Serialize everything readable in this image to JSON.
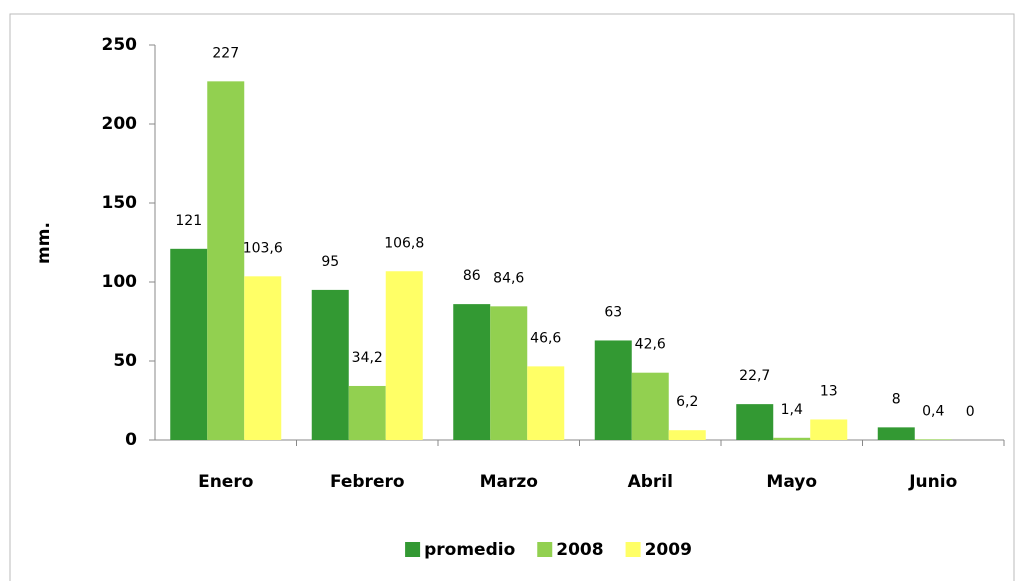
{
  "chart_data": {
    "type": "bar",
    "y_label": "mm.",
    "categories": [
      "Enero",
      "Febrero",
      "Marzo",
      "Abril",
      "Mayo",
      "Junio"
    ],
    "series": [
      {
        "name": "promedio",
        "color": "#339933",
        "values": [
          121,
          95,
          86,
          63,
          22.7,
          8
        ],
        "value_labels": [
          "121",
          "95",
          "86",
          "63",
          "22,7",
          "8"
        ]
      },
      {
        "name": "2008",
        "color": "#92d050",
        "values": [
          227,
          34.2,
          84.6,
          42.6,
          1.4,
          0.4
        ],
        "value_labels": [
          "227",
          "34,2",
          "84,6",
          "42,6",
          "1,4",
          "0,4"
        ]
      },
      {
        "name": "2009",
        "color": "#ffff66",
        "values": [
          103.6,
          106.8,
          46.6,
          6.2,
          13,
          0
        ],
        "value_labels": [
          "103,6",
          "106,8",
          "46,6",
          "6,2",
          "13",
          "0"
        ]
      }
    ],
    "ylim": [
      0,
      250
    ],
    "yticks": [
      0,
      50,
      100,
      150,
      200,
      250
    ],
    "grid": false,
    "legend": "bottom"
  }
}
